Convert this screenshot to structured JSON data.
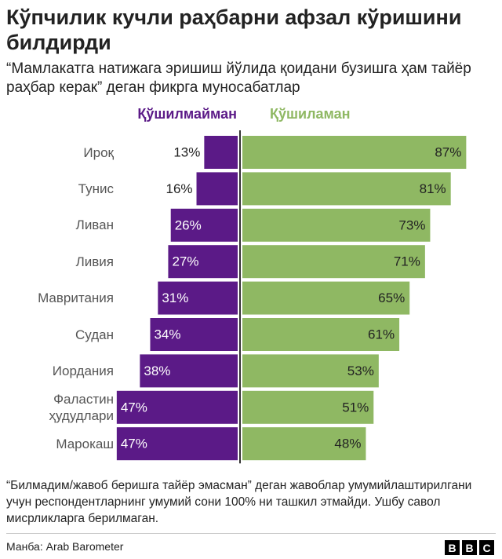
{
  "chart_data": {
    "type": "diverging-bar",
    "title": "Кўпчилик кучли раҳбарни афзал кўришини билдирди",
    "subtitle": "“Мамлакатга натижага эришиш йўлида қоидани бузишга ҳам тайёр раҳбар керак” деган фикрга муносабатлар",
    "categories": [
      "Ироқ",
      "Тунис",
      "Ливан",
      "Ливия",
      "Мавритания",
      "Судан",
      "Иордания",
      "Фаластин\nҳудудлари",
      "Марокаш"
    ],
    "series": [
      {
        "name": "Қўшилмайман",
        "color": "#5b1a87",
        "values": [
          13,
          16,
          26,
          27,
          31,
          34,
          38,
          47,
          47
        ],
        "value_labels": [
          "13%",
          "16%",
          "26%",
          "27%",
          "31%",
          "34%",
          "38%",
          "47%",
          "47%"
        ]
      },
      {
        "name": "Қўшиламан",
        "color": "#8fb863",
        "values": [
          87,
          81,
          73,
          71,
          65,
          61,
          53,
          51,
          48
        ],
        "value_labels": [
          "87%",
          "81%",
          "73%",
          "71%",
          "65%",
          "61%",
          "53%",
          "51%",
          "48%"
        ]
      }
    ],
    "note": "“Билмадим/жавоб беришга тайёр эмасман” деган жавоблар умумийлаштирилгани учун респондентларнинг умумий сони 100% ни ташкил этмайди. Ушбу савол мисрликларга берилмаган.",
    "source": "Манба: Arab Barometer",
    "logo": [
      "B",
      "B",
      "C"
    ]
  }
}
